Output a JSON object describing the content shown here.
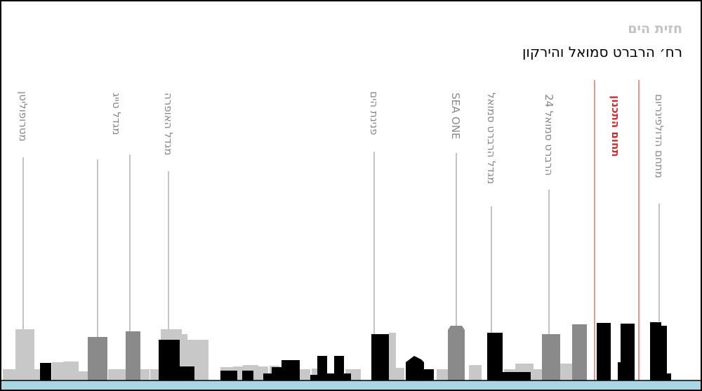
{
  "header": {
    "subtitle": "חזית הים",
    "title": "רח׳ הרברט סמואל והירקון"
  },
  "labels": {
    "metropolitan": "מטרופוליטן",
    "tag_tower": "מגדל טייג",
    "opera_tower": "מגדל האופרה",
    "pninat_hayam": "פנינת הים",
    "sea_one": "SEA ONE",
    "herbert_samuel_tower": "מגדל הרברט סמואל",
    "herbert_samuel_24": "הרברט סמואל 24",
    "planning_area": "תחום התכנון",
    "dolphinarium": "מתחם הדולפינריום"
  },
  "colors": {
    "planned": "#000000",
    "existing_dark": "#8a8a8a",
    "existing_light": "#c8c8c8",
    "boundary": "#d62a2a",
    "ground": "#a9d6e4",
    "leader": "#8a8a8a"
  }
}
